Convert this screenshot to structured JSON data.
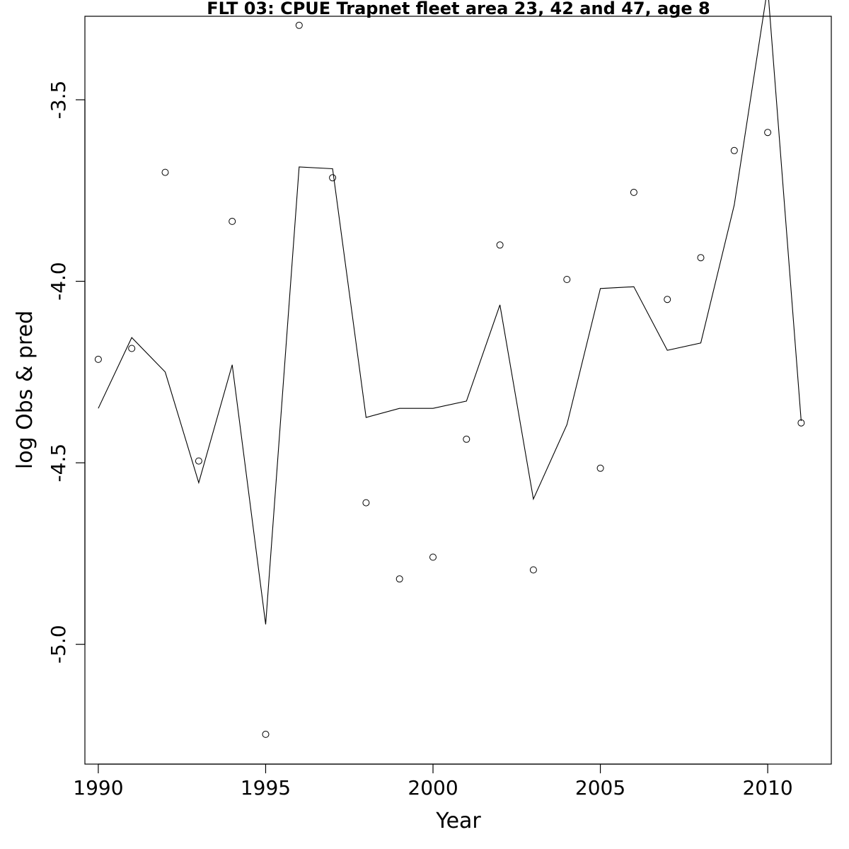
{
  "chart_data": {
    "type": "line",
    "title": "FLT 03: CPUE Trapnet fleet area 23, 42 and 47, age 8",
    "xlabel": "Year",
    "ylabel": "log Obs & pred",
    "xlim": [
      1989.6,
      2011.9
    ],
    "ylim": [
      -5.33,
      -3.27
    ],
    "xticks": [
      1990,
      1995,
      2000,
      2005,
      2010
    ],
    "xtick_labels": [
      "1990",
      "1995",
      "2000",
      "2005",
      "2010"
    ],
    "yticks": [
      -3.5,
      -4.0,
      -4.5,
      -5.0
    ],
    "ytick_labels": [
      "-3.5",
      "-4.0",
      "-4.5",
      "-5.0"
    ],
    "grid": false,
    "series": [
      {
        "kind": "points",
        "x": [
          1990,
          1991,
          1992,
          1993,
          1994,
          1995,
          1996,
          1997,
          1998,
          1999,
          2000,
          2001,
          2002,
          2003,
          2004,
          2005,
          2006,
          2007,
          2008,
          2009,
          2010,
          2011
        ],
        "y": [
          -4.215,
          -4.185,
          -3.7,
          -4.495,
          -3.835,
          -5.248,
          -3.295,
          -3.715,
          -4.61,
          -4.82,
          -4.76,
          -4.435,
          -3.9,
          -4.795,
          -3.995,
          -4.515,
          -3.755,
          -4.05,
          -3.935,
          -3.64,
          -3.59,
          -4.39
        ]
      },
      {
        "kind": "line",
        "x": [
          1990,
          1991,
          1992,
          1993,
          1994,
          1995,
          1996,
          1997,
          1998,
          1999,
          2000,
          2001,
          2002,
          2003,
          2004,
          2005,
          2006,
          2007,
          2008,
          2009,
          2010,
          2011
        ],
        "y": [
          -4.35,
          -4.155,
          -4.25,
          -4.555,
          -4.23,
          -4.945,
          -3.685,
          -3.69,
          -4.375,
          -4.35,
          -4.35,
          -4.33,
          -4.065,
          -4.6,
          -4.395,
          -4.02,
          -4.015,
          -4.19,
          -4.17,
          -3.79,
          -3.19,
          -4.385
        ]
      }
    ]
  }
}
